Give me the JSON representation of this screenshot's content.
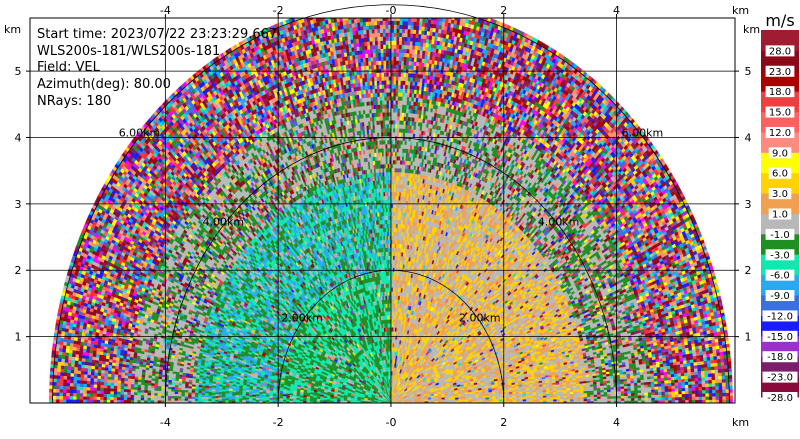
{
  "header": {
    "start_time": "Start time: 2023/07/22 23:23:29.667",
    "instrument": "WLS200s-181/WLS200s-181",
    "field": "Field: VEL",
    "azimuth": "Azimuth(deg): 80.00",
    "nrays": "NRays: 180"
  },
  "axes": {
    "x_unit": "km",
    "y_unit": "km",
    "x_ticks": [
      {
        "value": -4,
        "label": "-4"
      },
      {
        "value": -2,
        "label": "-2"
      },
      {
        "value": 0,
        "label": "-0"
      },
      {
        "value": 2,
        "label": "2"
      },
      {
        "value": 4,
        "label": "4"
      }
    ],
    "y_ticks": [
      {
        "value": 1,
        "label": "1"
      },
      {
        "value": 2,
        "label": "2"
      },
      {
        "value": 3,
        "label": "3"
      },
      {
        "value": 4,
        "label": "4"
      },
      {
        "value": 5,
        "label": "5"
      }
    ]
  },
  "range_rings": [
    {
      "radius_km": 2,
      "label": "2.00km"
    },
    {
      "radius_km": 4,
      "label": "4.00km"
    },
    {
      "radius_km": 6,
      "label": "6.00km"
    }
  ],
  "colorbar": {
    "unit": "m/s",
    "bins": [
      {
        "color": "#8b0a3c",
        "label": "-28.0"
      },
      {
        "color": "#7b1f6d",
        "label": "-23.0"
      },
      {
        "color": "#9b30cc",
        "label": "-18.0"
      },
      {
        "color": "#1a1aff",
        "label": "-15.0"
      },
      {
        "color": "#3a6fe0",
        "label": "-12.0"
      },
      {
        "color": "#2aa8f0",
        "label": "-9.0"
      },
      {
        "color": "#10e8b0",
        "label": "-6.0"
      },
      {
        "color": "#1f8f24",
        "label": "-3.0"
      },
      {
        "color": "#b8b8b8",
        "label": "-1.0"
      },
      {
        "color": "#f0a050",
        "label": "1.0"
      },
      {
        "color": "#ffd200",
        "label": "3.0"
      },
      {
        "color": "#ffff00",
        "label": "6.0"
      },
      {
        "color": "#ff8a80",
        "label": "9.0"
      },
      {
        "color": "#ff6060",
        "label": "12.0"
      },
      {
        "color": "#ee4040",
        "label": "15.0"
      },
      {
        "color": "#aa0000",
        "label": "18.0"
      },
      {
        "color": "#8b0a1a",
        "label": "23.0"
      },
      {
        "color": "#a01c30",
        "label": "28.0"
      }
    ]
  },
  "chart_data": {
    "type": "heatmap",
    "projection": "polar sector (RHI-style half disc)",
    "field": "VEL",
    "units": "m/s",
    "xlim": [
      -6.4,
      6.1
    ],
    "ylim": [
      0,
      5.8
    ],
    "max_range_km": 6,
    "nrays": 180,
    "grid": true,
    "regions": [
      {
        "range_km": [
          0,
          2
        ],
        "angle_deg": [
          90,
          180
        ],
        "dominant_bins": [
          "-6.0",
          "-3.0"
        ]
      },
      {
        "range_km": [
          0,
          2
        ],
        "angle_deg": [
          0,
          90
        ],
        "dominant_bins": [
          "1.0",
          "3.0",
          "-1.0"
        ]
      },
      {
        "range_km": [
          2,
          3.5
        ],
        "angle_deg": [
          90,
          180
        ],
        "dominant_bins": [
          "-6.0",
          "-9.0",
          "-3.0"
        ]
      },
      {
        "range_km": [
          2,
          3.5
        ],
        "angle_deg": [
          0,
          90
        ],
        "dominant_bins": [
          "3.0",
          "1.0",
          "-1.0"
        ]
      },
      {
        "range_km": [
          3.5,
          4.6
        ],
        "angle_deg": [
          0,
          180
        ],
        "dominant_bins": [
          "-1.0",
          "-3.0",
          "mixed"
        ]
      },
      {
        "range_km": [
          4.6,
          6
        ],
        "angle_deg": [
          0,
          180
        ],
        "dominant_bins": [
          "mixed"
        ]
      }
    ]
  }
}
